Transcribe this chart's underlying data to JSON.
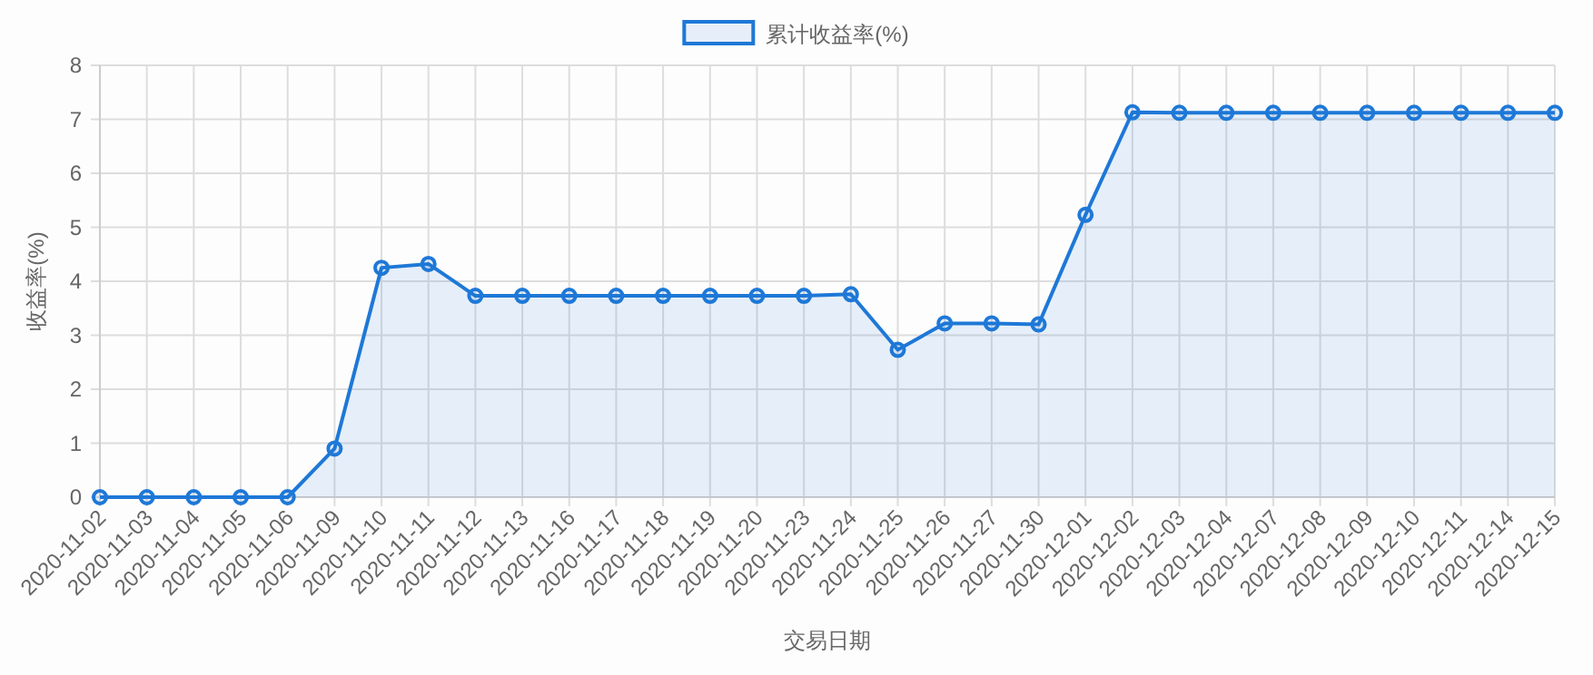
{
  "chart_data": {
    "type": "area",
    "xlabel": "交易日期",
    "ylabel": "收益率(%)",
    "categories": [
      "2020-11-02",
      "2020-11-03",
      "2020-11-04",
      "2020-11-05",
      "2020-11-06",
      "2020-11-09",
      "2020-11-10",
      "2020-11-11",
      "2020-11-12",
      "2020-11-13",
      "2020-11-16",
      "2020-11-17",
      "2020-11-18",
      "2020-11-19",
      "2020-11-20",
      "2020-11-23",
      "2020-11-24",
      "2020-11-25",
      "2020-11-26",
      "2020-11-27",
      "2020-11-30",
      "2020-12-01",
      "2020-12-02",
      "2020-12-03",
      "2020-12-04",
      "2020-12-07",
      "2020-12-08",
      "2020-12-09",
      "2020-12-10",
      "2020-12-11",
      "2020-12-14",
      "2020-12-15"
    ],
    "series": [
      {
        "name": "累计收益率(%)",
        "color": "#1e78d7",
        "values": [
          0,
          0,
          0,
          0,
          0,
          0.9,
          4.25,
          4.32,
          3.73,
          3.73,
          3.73,
          3.73,
          3.73,
          3.73,
          3.73,
          3.73,
          3.76,
          2.73,
          3.22,
          3.22,
          3.2,
          5.23,
          7.13,
          7.12,
          7.12,
          7.12,
          7.12,
          7.12,
          7.12,
          7.12,
          7.12,
          7.12
        ]
      }
    ],
    "ylim": [
      0,
      8
    ],
    "yticks": [
      0,
      1,
      2,
      3,
      4,
      5,
      6,
      7,
      8
    ],
    "grid": true,
    "legend": "top",
    "marker": "circle"
  }
}
